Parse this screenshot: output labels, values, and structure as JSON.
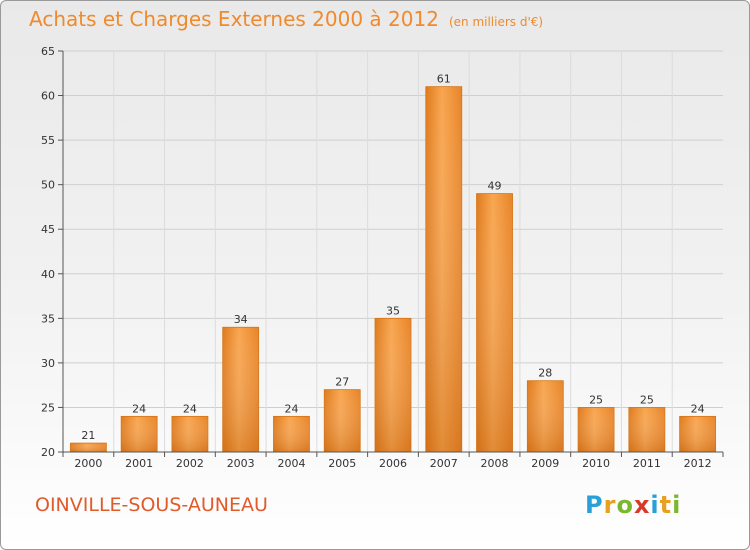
{
  "header": {
    "title": "Achats et Charges Externes 2000 à 2012",
    "unit": "(en milliers d'€)"
  },
  "footer": {
    "location": "OINVILLE-SOUS-AUNEAU",
    "logo_letters": [
      "P",
      "r",
      "o",
      "x",
      "i",
      "t",
      "i"
    ],
    "logo_colors": [
      "#2aa0d8",
      "#e8a020",
      "#7ab82c",
      "#d83a2a",
      "#2aa0d8",
      "#e8a020",
      "#7ab82c"
    ]
  },
  "chart_data": {
    "type": "bar",
    "title": "Achats et Charges Externes 2000 à 2012",
    "categories": [
      "2000",
      "2001",
      "2002",
      "2003",
      "2004",
      "2005",
      "2006",
      "2007",
      "2008",
      "2009",
      "2010",
      "2011",
      "2012"
    ],
    "values": [
      21,
      24,
      24,
      34,
      24,
      27,
      35,
      61,
      49,
      28,
      25,
      25,
      24
    ],
    "ylim": [
      20,
      65
    ],
    "yticks": [
      20,
      25,
      30,
      35,
      40,
      45,
      50,
      55,
      60,
      65
    ],
    "grid": true,
    "bar_color": "#f39a3e",
    "bar_color_dark": "#d86f14"
  }
}
